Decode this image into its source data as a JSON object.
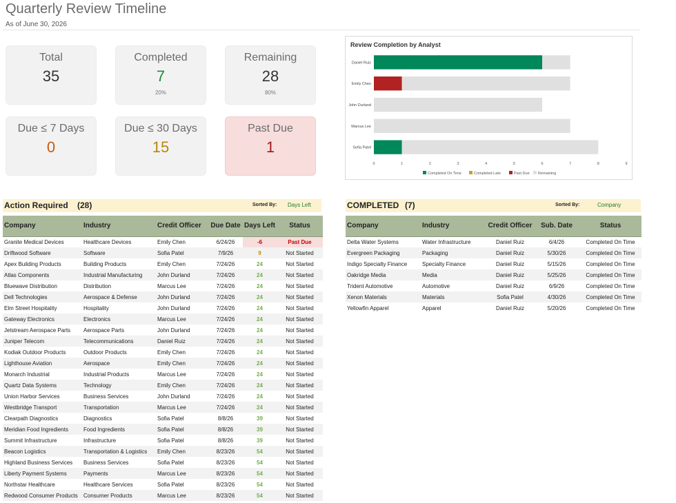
{
  "header": {
    "title": "Quarterly Review Timeline",
    "as_of": "As of June 30, 2026"
  },
  "cards": {
    "total": {
      "label": "Total",
      "value": "35"
    },
    "completed": {
      "label": "Completed",
      "value": "7",
      "pct": "20%"
    },
    "remaining": {
      "label": "Remaining",
      "value": "28",
      "pct": "80%"
    },
    "due7": {
      "label": "Due ≤ 7 Days",
      "value": "0"
    },
    "due30": {
      "label": "Due ≤ 30 Days",
      "value": "15"
    },
    "pastdue": {
      "label": "Past Due",
      "value": "1"
    }
  },
  "colors": {
    "completed_on_time": "#00875a",
    "completed_late": "#c9a227",
    "past_due": "#b22222",
    "remaining": "#e0e0e0",
    "header_green": "#a9b99a",
    "section_yellow": "#fdf2d0"
  },
  "chart_data": {
    "type": "bar",
    "orientation": "horizontal",
    "stacked": true,
    "title": "Review Completion by Analyst",
    "categories": [
      "Daniel Ruiz",
      "Emily Chen",
      "John Durland",
      "Marcus Lee",
      "Sofia Patel"
    ],
    "series": [
      {
        "name": "Completed On Time",
        "values": [
          6,
          0,
          0,
          0,
          1
        ]
      },
      {
        "name": "Completed Late",
        "values": [
          0,
          0,
          0,
          0,
          0
        ]
      },
      {
        "name": "Past Due",
        "values": [
          0,
          1,
          0,
          0,
          0
        ]
      },
      {
        "name": "Remaining",
        "values": [
          1,
          6,
          6,
          7,
          7
        ]
      }
    ],
    "xlim": [
      0,
      9
    ],
    "xticks": [
      "0",
      "1",
      "2",
      "3",
      "4",
      "5",
      "6",
      "7",
      "8",
      "9"
    ],
    "legend": "bottom"
  },
  "action": {
    "title": "Action Required",
    "count": "(28)",
    "sorted_label": "Sorted By:",
    "sorted_value": "Days Left",
    "columns": [
      "Company",
      "Industry",
      "Credit Officer",
      "Due Date",
      "Days Left",
      "Status"
    ],
    "rows": [
      [
        "Granite Medical Devices",
        "Healthcare Devices",
        "Emily Chen",
        "6/24/26",
        "-6",
        "Past Due"
      ],
      [
        "Driftwood Software",
        "Software",
        "Sofia Patel",
        "7/9/26",
        "9",
        "Not Started"
      ],
      [
        "Apex Building Products",
        "Building Products",
        "Emily Chen",
        "7/24/26",
        "24",
        "Not Started"
      ],
      [
        "Atlas Components",
        "Industrial Manufacturing",
        "John Durland",
        "7/24/26",
        "24",
        "Not Started"
      ],
      [
        "Bluewave Distribution",
        "Distribution",
        "Marcus Lee",
        "7/24/26",
        "24",
        "Not Started"
      ],
      [
        "Dell Technologies",
        "Aerospace & Defense",
        "John Durland",
        "7/24/26",
        "24",
        "Not Started"
      ],
      [
        "Elm Street Hospitality",
        "Hospitality",
        "John Durland",
        "7/24/26",
        "24",
        "Not Started"
      ],
      [
        "Gateway Electronics",
        "Electronics",
        "Marcus Lee",
        "7/24/26",
        "24",
        "Not Started"
      ],
      [
        "Jetstream Aerospace Parts",
        "Aerospace Parts",
        "John Durland",
        "7/24/26",
        "24",
        "Not Started"
      ],
      [
        "Juniper Telecom",
        "Telecommunications",
        "Daniel Ruiz",
        "7/24/26",
        "24",
        "Not Started"
      ],
      [
        "Kodiak Outdoor Products",
        "Outdoor Products",
        "Emily Chen",
        "7/24/26",
        "24",
        "Not Started"
      ],
      [
        "Lighthouse Aviation",
        "Aerospace",
        "Emily Chen",
        "7/24/26",
        "24",
        "Not Started"
      ],
      [
        "Monarch Industrial",
        "Industrial Products",
        "Marcus Lee",
        "7/24/26",
        "24",
        "Not Started"
      ],
      [
        "Quartz Data Systems",
        "Technology",
        "Emily Chen",
        "7/24/26",
        "24",
        "Not Started"
      ],
      [
        "Union Harbor Services",
        "Business Services",
        "John Durland",
        "7/24/26",
        "24",
        "Not Started"
      ],
      [
        "Westbridge Transport",
        "Transportation",
        "Marcus Lee",
        "7/24/26",
        "24",
        "Not Started"
      ],
      [
        "Clearpath Diagnostics",
        "Diagnostics",
        "Sofia Patel",
        "8/8/26",
        "39",
        "Not Started"
      ],
      [
        "Meridian Food Ingredients",
        "Food Ingredients",
        "Sofia Patel",
        "8/8/26",
        "39",
        "Not Started"
      ],
      [
        "Summit Infrastructure",
        "Infrastructure",
        "Sofia Patel",
        "8/8/26",
        "39",
        "Not Started"
      ],
      [
        "Beacon Logistics",
        "Transportation & Logistics",
        "Emily Chen",
        "8/23/26",
        "54",
        "Not Started"
      ],
      [
        "Highland Business Services",
        "Business Services",
        "Sofia Patel",
        "8/23/26",
        "54",
        "Not Started"
      ],
      [
        "Liberty Payment Systems",
        "Payments",
        "Marcus Lee",
        "8/23/26",
        "54",
        "Not Started"
      ],
      [
        "Northstar Healthcare",
        "Healthcare Services",
        "Sofia Patel",
        "8/23/26",
        "54",
        "Not Started"
      ],
      [
        "Redwood Consumer Products",
        "Consumer Products",
        "Marcus Lee",
        "8/23/26",
        "54",
        "Not Started"
      ]
    ]
  },
  "completed": {
    "title": "COMPLETED",
    "count": "(7)",
    "sorted_label": "Sorted By:",
    "sorted_value": "Company",
    "columns": [
      "Company",
      "Industry",
      "Credit Officer",
      "Sub. Date",
      "Status"
    ],
    "rows": [
      [
        "Delta Water Systems",
        "Water Infrastructure",
        "Daniel Ruiz",
        "6/4/26",
        "Completed On Time"
      ],
      [
        "Evergreen Packaging",
        "Packaging",
        "Daniel Ruiz",
        "5/30/26",
        "Completed On Time"
      ],
      [
        "Indigo Specialty Finance",
        "Specialty Finance",
        "Daniel Ruiz",
        "5/15/26",
        "Completed On Time"
      ],
      [
        "Oakridge Media",
        "Media",
        "Daniel Ruiz",
        "5/25/26",
        "Completed On Time"
      ],
      [
        "Trident Automotive",
        "Automotive",
        "Daniel Ruiz",
        "6/9/26",
        "Completed On Time"
      ],
      [
        "Xenon Materials",
        "Materials",
        "Sofia Patel",
        "4/30/26",
        "Completed On Time"
      ],
      [
        "Yellowfin Apparel",
        "Apparel",
        "Daniel Ruiz",
        "5/20/26",
        "Completed On Time"
      ]
    ]
  }
}
